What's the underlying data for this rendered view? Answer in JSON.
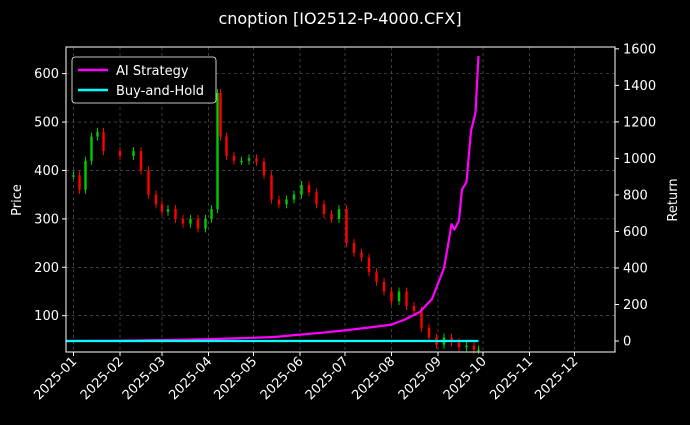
{
  "chart_data": {
    "type": "line",
    "title": "cnoption [IO2512-P-4000.CFX]",
    "ylabel": "Price",
    "y2label": "Return",
    "x_ticks": [
      "2025-01",
      "2025-02",
      "2025-03",
      "2025-04",
      "2025-05",
      "2025-06",
      "2025-07",
      "2025-08",
      "2025-09",
      "2025-10",
      "2025-11",
      "2025-12"
    ],
    "xlim": [
      "2024-12-27",
      "2025-12-28"
    ],
    "ylim": [
      25,
      655
    ],
    "y_ticks": [
      100,
      200,
      300,
      400,
      500,
      600
    ],
    "y2lim": [
      -60,
      1610
    ],
    "y2_ticks": [
      0,
      200,
      400,
      600,
      800,
      1000,
      1200,
      1400,
      1600
    ],
    "grid": true,
    "legend_position": "top-left",
    "colors": {
      "up": "#00cc00",
      "down": "#ff0000",
      "ai_strategy": "#ff00ff",
      "buy_and_hold": "#00ffff",
      "grid": "#666666",
      "background": "#000000"
    },
    "price_series": {
      "name": "",
      "dates": [
        "2025-01-01",
        "2025-01-05",
        "2025-01-09",
        "2025-01-13",
        "2025-01-17",
        "2025-01-21",
        "2025-02-01",
        "2025-02-10",
        "2025-02-15",
        "2025-02-20",
        "2025-02-25",
        "2025-03-01",
        "2025-03-05",
        "2025-03-10",
        "2025-03-15",
        "2025-03-20",
        "2025-03-25",
        "2025-03-30",
        "2025-04-03",
        "2025-04-07",
        "2025-04-09",
        "2025-04-13",
        "2025-04-18",
        "2025-04-23",
        "2025-04-28",
        "2025-05-03",
        "2025-05-08",
        "2025-05-13",
        "2025-05-18",
        "2025-05-23",
        "2025-05-28",
        "2025-06-02",
        "2025-06-07",
        "2025-06-12",
        "2025-06-17",
        "2025-06-22",
        "2025-06-27",
        "2025-07-02",
        "2025-07-07",
        "2025-07-12",
        "2025-07-17",
        "2025-07-22",
        "2025-07-27",
        "2025-08-01",
        "2025-08-06",
        "2025-08-11",
        "2025-08-16",
        "2025-08-21",
        "2025-08-26",
        "2025-08-31",
        "2025-09-05",
        "2025-09-10",
        "2025-09-15",
        "2025-09-20",
        "2025-09-25",
        "2025-09-28"
      ],
      "values": [
        390,
        360,
        420,
        470,
        480,
        440,
        430,
        440,
        400,
        350,
        330,
        315,
        320,
        300,
        290,
        300,
        280,
        300,
        320,
        560,
        470,
        430,
        420,
        420,
        425,
        418,
        390,
        340,
        330,
        340,
        350,
        370,
        355,
        330,
        310,
        300,
        320,
        250,
        230,
        220,
        190,
        170,
        150,
        130,
        150,
        120,
        110,
        75,
        55,
        40,
        55,
        45,
        35,
        38,
        30,
        30
      ]
    },
    "series": [
      {
        "name": "AI Strategy",
        "dates": [
          "2024-12-27",
          "2025-02-01",
          "2025-03-01",
          "2025-04-01",
          "2025-04-15",
          "2025-05-01",
          "2025-05-15",
          "2025-06-01",
          "2025-06-15",
          "2025-07-01",
          "2025-07-15",
          "2025-08-01",
          "2025-08-10",
          "2025-08-20",
          "2025-08-28",
          "2025-09-05",
          "2025-09-08",
          "2025-09-10",
          "2025-09-12",
          "2025-09-15",
          "2025-09-17",
          "2025-09-20",
          "2025-09-23",
          "2025-09-26",
          "2025-09-28"
        ],
        "values": [
          0,
          2,
          5,
          10,
          14,
          18,
          22,
          35,
          45,
          58,
          72,
          90,
          118,
          160,
          230,
          400,
          540,
          640,
          610,
          660,
          830,
          870,
          1150,
          1250,
          1560
        ]
      },
      {
        "name": "Buy-and-Hold",
        "dates": [
          "2024-12-27",
          "2025-09-28"
        ],
        "values": [
          0,
          0
        ]
      }
    ]
  }
}
